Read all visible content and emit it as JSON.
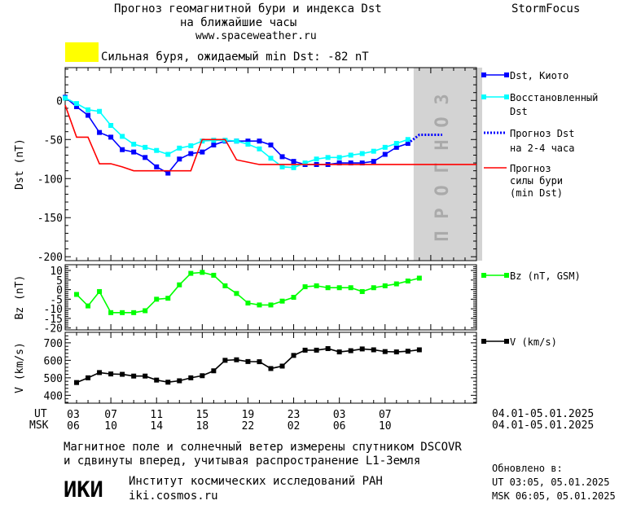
{
  "header": {
    "title_line1": "Прогноз геомагнитной бури и индекса Dst",
    "title_line2": "на ближайшие часы",
    "url": "www.spaceweather.ru",
    "brand": "StormFocus",
    "storm_label": "Сильная буря, ожидаемый min Dst: -82 nT",
    "storm_color": "#ffff00"
  },
  "forecast_band_label": "ПРОГНОЗ",
  "time_axis": {
    "ut_label": "UT",
    "msk_label": "MSK",
    "ut_ticks": [
      "03",
      "07",
      "11",
      "15",
      "19",
      "23",
      "03",
      "07"
    ],
    "msk_ticks": [
      "06",
      "10",
      "14",
      "18",
      "22",
      "02",
      "06",
      "10"
    ],
    "ut_range": "04.01-05.01.2025",
    "msk_range": "04.01-05.01.2025"
  },
  "chart_data": [
    {
      "type": "line",
      "ylabel": "Dst (nT)",
      "ylim": [
        -205,
        42
      ],
      "yticks": [
        0,
        -50,
        -100,
        -150,
        -200
      ],
      "x_unit": "hours since 03 UT 04.01.2025",
      "forecast_region": [
        30.5,
        36.5
      ],
      "series": [
        {
          "name": "Dst, Киото",
          "color": "#0000ff",
          "marker": "square",
          "x": [
            0,
            1,
            2,
            3,
            4,
            5,
            6,
            7,
            8,
            9,
            10,
            11,
            12,
            13,
            14,
            15,
            16,
            17,
            18,
            19,
            20,
            21,
            22,
            23,
            24,
            25,
            26,
            27,
            28,
            29,
            30
          ],
          "values": [
            4,
            -8,
            -19,
            -41,
            -47,
            -63,
            -66,
            -73,
            -85,
            -93,
            -75,
            -68,
            -66,
            -57,
            -52,
            -52,
            -52,
            -52,
            -57,
            -72,
            -78,
            -82,
            -82,
            -82,
            -80,
            -80,
            -80,
            -78,
            -69,
            -60,
            -55
          ]
        },
        {
          "name": "Восстановленный Dst",
          "color": "#00ffff",
          "marker": "square",
          "x": [
            0,
            1,
            2,
            3,
            4,
            5,
            6,
            7,
            8,
            9,
            10,
            11,
            12,
            13,
            14,
            15,
            16,
            17,
            18,
            19,
            20,
            21,
            22,
            23,
            24,
            25,
            26,
            27,
            28,
            29,
            30
          ],
          "values": [
            3,
            -4,
            -12,
            -14,
            -32,
            -46,
            -56,
            -60,
            -64,
            -69,
            -61,
            -58,
            -52,
            -51,
            -51,
            -52,
            -56,
            -62,
            -74,
            -85,
            -86,
            -80,
            -75,
            -73,
            -73,
            -70,
            -68,
            -65,
            -60,
            -55,
            -50
          ]
        },
        {
          "name": "Прогноз Dst на 2-4 часа",
          "color": "#0000ff",
          "style": "dotted",
          "x": [
            30,
            31,
            32,
            33
          ],
          "values": [
            -55,
            -44,
            -44,
            -44
          ]
        },
        {
          "name": "Прогноз силы бури (min Dst)",
          "color": "#ff0000",
          "style": "solid",
          "x": [
            0,
            1,
            2,
            3,
            4,
            5,
            6,
            7,
            8,
            9,
            10,
            11,
            12,
            13,
            14,
            15,
            16,
            17,
            18,
            19,
            20,
            21,
            22,
            23,
            24,
            25,
            26,
            27,
            28,
            29,
            30,
            31,
            32,
            33,
            34,
            35,
            36
          ],
          "values": [
            -6,
            -47,
            -47,
            -81,
            -81,
            -85,
            -90,
            -90,
            -90,
            -90,
            -90,
            -90,
            -50,
            -50,
            -50,
            -76,
            -79,
            -82,
            -82,
            -82,
            -82,
            -82,
            -82,
            -82,
            -82,
            -82,
            -82,
            -82,
            -82,
            -82,
            -82,
            -82,
            -82,
            -82,
            -82,
            -82,
            -82
          ]
        }
      ]
    },
    {
      "type": "line",
      "ylabel": "Bz (nT)",
      "ylim": [
        -21,
        13
      ],
      "yticks": [
        10,
        5,
        0,
        -5,
        -10,
        -15,
        -20
      ],
      "series": [
        {
          "name": "Bz (nT, GSM)",
          "color": "#00ff00",
          "marker": "square",
          "x": [
            1,
            2,
            3,
            4,
            5,
            6,
            7,
            8,
            9,
            10,
            11,
            12,
            13,
            14,
            15,
            16,
            17,
            18,
            19,
            20,
            21,
            22,
            23,
            24,
            25,
            26,
            27,
            28,
            29,
            30,
            31
          ],
          "values": [
            -2.5,
            -8.5,
            -1,
            -12,
            -12,
            -12,
            -11,
            -5,
            -4.5,
            2.5,
            8.5,
            9,
            7.5,
            2,
            -2,
            -7,
            -8,
            -8,
            -6,
            -4,
            1.5,
            2,
            1,
            1,
            1,
            -1,
            1,
            2,
            3,
            4.5,
            6
          ]
        }
      ]
    },
    {
      "type": "line",
      "ylabel": "V (km/s)",
      "ylim": [
        355,
        760
      ],
      "yticks": [
        700,
        600,
        500,
        400
      ],
      "series": [
        {
          "name": "V (km/s)",
          "color": "#000000",
          "marker": "square",
          "x": [
            1,
            2,
            3,
            4,
            5,
            6,
            7,
            8,
            9,
            10,
            11,
            12,
            13,
            14,
            15,
            16,
            17,
            18,
            19,
            20,
            21,
            22,
            23,
            24,
            25,
            26,
            27,
            28,
            29,
            30,
            31
          ],
          "values": [
            473,
            500,
            530,
            522,
            520,
            510,
            510,
            487,
            475,
            483,
            500,
            512,
            540,
            600,
            603,
            593,
            592,
            553,
            567,
            628,
            658,
            658,
            667,
            648,
            655,
            665,
            660,
            650,
            648,
            652,
            660
          ]
        }
      ]
    }
  ],
  "legend": {
    "dst_kyoto": "Dst, Киото",
    "recon_line1": "Восстановленный",
    "recon_line2": "Dst",
    "fc_line1": "Прогноз Dst",
    "fc_line2": "на 2-4 часа",
    "storm_line1": "Прогноз",
    "storm_line2": "силы бури",
    "storm_line3": "(min Dst)",
    "bz": "Bz (nT, GSM)",
    "v": "V (km/s)"
  },
  "footer": {
    "line1": "Магнитное поле и солнечный ветер измерены спутником DSCOVR",
    "line2": "и сдвинуты вперед, учитывая распространение L1-Земля",
    "institute": "Институт космических исследований РАН",
    "institute_url": "iki.cosmos.ru",
    "logo_text": "ИКИ",
    "updated_label": "Обновлено в:",
    "updated_ut": "UT  03:05, 05.01.2025",
    "updated_msk": "MSK 06:05, 05.01.2025"
  }
}
